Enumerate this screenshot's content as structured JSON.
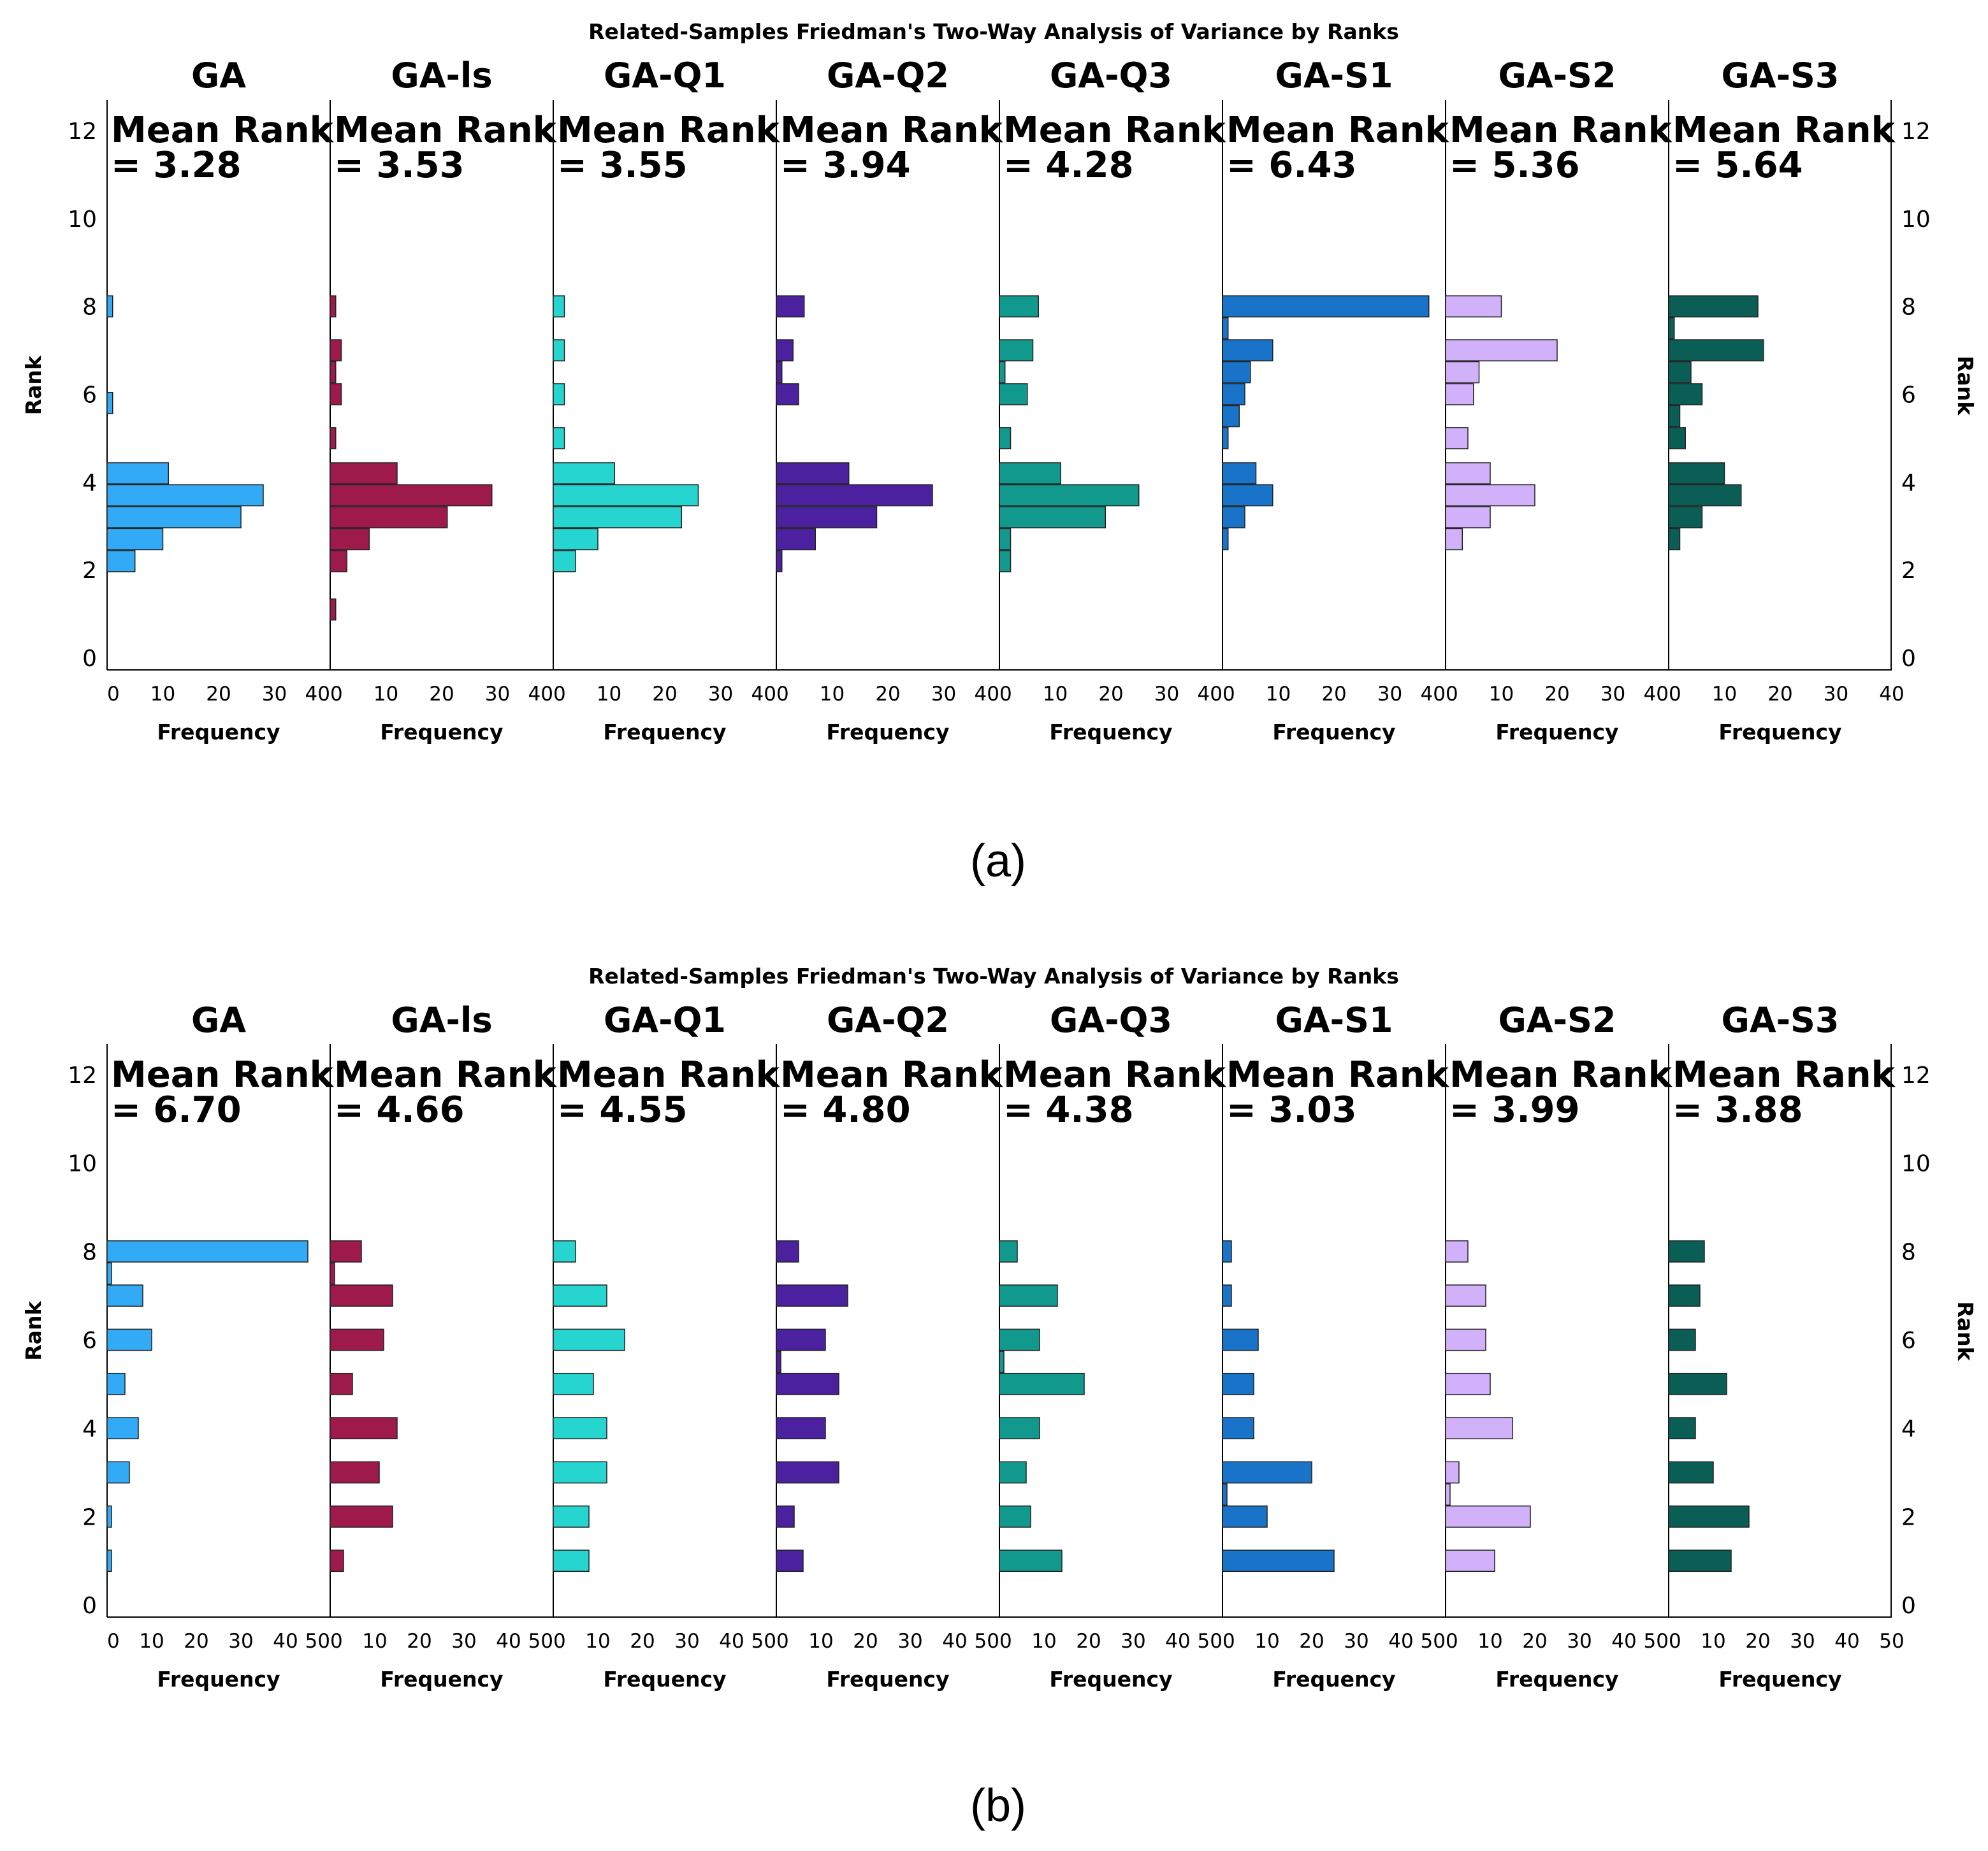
{
  "chart_data": [
    {
      "type": "bar",
      "orientation": "horizontal",
      "title": "Related-Samples Friedman's Two-Way Analysis of Variance by Ranks",
      "subfigure_label": "(a)",
      "ylabel": "Rank",
      "xlabel": "Frequency",
      "ylim": [
        0,
        12
      ],
      "yticks": [
        0,
        2,
        4,
        6,
        8,
        10,
        12
      ],
      "xlim": [
        0,
        40
      ],
      "xticks": [
        0,
        10,
        20,
        30,
        40
      ],
      "panels": [
        {
          "name": "GA",
          "mean_rank_label": "Mean Rank",
          "mean_rank_value": "= 3.28",
          "color": "#33aaf5",
          "bars": [
            {
              "rank": 2.2,
              "freq": 5
            },
            {
              "rank": 2.7,
              "freq": 10
            },
            {
              "rank": 3.2,
              "freq": 24
            },
            {
              "rank": 3.7,
              "freq": 28
            },
            {
              "rank": 4.2,
              "freq": 11
            },
            {
              "rank": 5.8,
              "freq": 1
            },
            {
              "rank": 8,
              "freq": 1
            }
          ]
        },
        {
          "name": "GA-ls",
          "mean_rank_label": "Mean Rank",
          "mean_rank_value": "= 3.53",
          "color": "#9e1a4a",
          "bars": [
            {
              "rank": 1.1,
              "freq": 1
            },
            {
              "rank": 2.2,
              "freq": 3
            },
            {
              "rank": 2.7,
              "freq": 7
            },
            {
              "rank": 3.2,
              "freq": 21
            },
            {
              "rank": 3.7,
              "freq": 29
            },
            {
              "rank": 4.2,
              "freq": 12
            },
            {
              "rank": 5,
              "freq": 1
            },
            {
              "rank": 6,
              "freq": 2
            },
            {
              "rank": 6.5,
              "freq": 1
            },
            {
              "rank": 7,
              "freq": 2
            },
            {
              "rank": 8,
              "freq": 1
            }
          ]
        },
        {
          "name": "GA-Q1",
          "mean_rank_label": "Mean Rank",
          "mean_rank_value": "= 3.55",
          "color": "#26d4d0",
          "bars": [
            {
              "rank": 2.2,
              "freq": 4
            },
            {
              "rank": 2.7,
              "freq": 8
            },
            {
              "rank": 3.2,
              "freq": 23
            },
            {
              "rank": 3.7,
              "freq": 26
            },
            {
              "rank": 4.2,
              "freq": 11
            },
            {
              "rank": 5,
              "freq": 2
            },
            {
              "rank": 6,
              "freq": 2
            },
            {
              "rank": 7,
              "freq": 2
            },
            {
              "rank": 8,
              "freq": 2
            }
          ]
        },
        {
          "name": "GA-Q2",
          "mean_rank_label": "Mean Rank",
          "mean_rank_value": "= 3.94",
          "color": "#4b21a0",
          "bars": [
            {
              "rank": 2.2,
              "freq": 1
            },
            {
              "rank": 2.7,
              "freq": 7
            },
            {
              "rank": 3.2,
              "freq": 18
            },
            {
              "rank": 3.7,
              "freq": 28
            },
            {
              "rank": 4.2,
              "freq": 13
            },
            {
              "rank": 6,
              "freq": 4
            },
            {
              "rank": 6.5,
              "freq": 1
            },
            {
              "rank": 7,
              "freq": 3
            },
            {
              "rank": 8,
              "freq": 5
            }
          ]
        },
        {
          "name": "GA-Q3",
          "mean_rank_label": "Mean Rank",
          "mean_rank_value": "= 4.28",
          "color": "#12998e",
          "bars": [
            {
              "rank": 2.2,
              "freq": 2
            },
            {
              "rank": 2.7,
              "freq": 2
            },
            {
              "rank": 3.2,
              "freq": 19
            },
            {
              "rank": 3.7,
              "freq": 25
            },
            {
              "rank": 4.2,
              "freq": 11
            },
            {
              "rank": 5,
              "freq": 2
            },
            {
              "rank": 6,
              "freq": 5
            },
            {
              "rank": 6.5,
              "freq": 1
            },
            {
              "rank": 7,
              "freq": 6
            },
            {
              "rank": 8,
              "freq": 7
            }
          ]
        },
        {
          "name": "GA-S1",
          "mean_rank_label": "Mean Rank",
          "mean_rank_value": "= 6.43",
          "color": "#1873c9",
          "bars": [
            {
              "rank": 2.7,
              "freq": 1
            },
            {
              "rank": 3.2,
              "freq": 4
            },
            {
              "rank": 3.7,
              "freq": 9
            },
            {
              "rank": 4.2,
              "freq": 6
            },
            {
              "rank": 5,
              "freq": 1
            },
            {
              "rank": 5.5,
              "freq": 3
            },
            {
              "rank": 6,
              "freq": 4
            },
            {
              "rank": 6.5,
              "freq": 5
            },
            {
              "rank": 7,
              "freq": 9
            },
            {
              "rank": 7.5,
              "freq": 1
            },
            {
              "rank": 8,
              "freq": 37
            }
          ]
        },
        {
          "name": "GA-S2",
          "mean_rank_label": "Mean Rank",
          "mean_rank_value": "= 5.36",
          "color": "#d1b1fa",
          "bars": [
            {
              "rank": 2.7,
              "freq": 3
            },
            {
              "rank": 3.2,
              "freq": 8
            },
            {
              "rank": 3.7,
              "freq": 16
            },
            {
              "rank": 4.2,
              "freq": 8
            },
            {
              "rank": 5,
              "freq": 4
            },
            {
              "rank": 6,
              "freq": 5
            },
            {
              "rank": 6.5,
              "freq": 6
            },
            {
              "rank": 7,
              "freq": 20
            },
            {
              "rank": 8,
              "freq": 10
            }
          ]
        },
        {
          "name": "GA-S3",
          "mean_rank_label": "Mean Rank",
          "mean_rank_value": "= 5.64",
          "color": "#0b5e55",
          "bars": [
            {
              "rank": 2.7,
              "freq": 2
            },
            {
              "rank": 3.2,
              "freq": 6
            },
            {
              "rank": 3.7,
              "freq": 13
            },
            {
              "rank": 4.2,
              "freq": 10
            },
            {
              "rank": 5,
              "freq": 3
            },
            {
              "rank": 5.5,
              "freq": 2
            },
            {
              "rank": 6,
              "freq": 6
            },
            {
              "rank": 6.5,
              "freq": 4
            },
            {
              "rank": 7,
              "freq": 17
            },
            {
              "rank": 7.5,
              "freq": 1
            },
            {
              "rank": 8,
              "freq": 16
            }
          ]
        }
      ]
    },
    {
      "type": "bar",
      "orientation": "horizontal",
      "title": "Related-Samples Friedman's Two-Way Analysis of Variance by Ranks",
      "subfigure_label": "(b)",
      "ylabel": "Rank",
      "xlabel": "Frequency",
      "ylim": [
        0,
        12
      ],
      "yticks": [
        0,
        2,
        4,
        6,
        8,
        10,
        12
      ],
      "xlim": [
        0,
        50
      ],
      "xticks": [
        0,
        10,
        20,
        30,
        40,
        50
      ],
      "panels": [
        {
          "name": "GA",
          "mean_rank_label": "Mean Rank",
          "mean_rank_value": "= 6.70",
          "color": "#33aaf5",
          "bars": [
            {
              "rank": 1,
              "freq": 1
            },
            {
              "rank": 2,
              "freq": 1
            },
            {
              "rank": 3,
              "freq": 5
            },
            {
              "rank": 4,
              "freq": 7
            },
            {
              "rank": 5,
              "freq": 4
            },
            {
              "rank": 6,
              "freq": 10
            },
            {
              "rank": 7,
              "freq": 8
            },
            {
              "rank": 7.5,
              "freq": 1
            },
            {
              "rank": 8,
              "freq": 45
            }
          ]
        },
        {
          "name": "GA-ls",
          "mean_rank_label": "Mean Rank",
          "mean_rank_value": "= 4.66",
          "color": "#9e1a4a",
          "bars": [
            {
              "rank": 1,
              "freq": 3
            },
            {
              "rank": 2,
              "freq": 14
            },
            {
              "rank": 3,
              "freq": 11
            },
            {
              "rank": 4,
              "freq": 15
            },
            {
              "rank": 5,
              "freq": 5
            },
            {
              "rank": 6,
              "freq": 12
            },
            {
              "rank": 7,
              "freq": 14
            },
            {
              "rank": 7.5,
              "freq": 1
            },
            {
              "rank": 8,
              "freq": 7
            }
          ]
        },
        {
          "name": "GA-Q1",
          "mean_rank_label": "Mean Rank",
          "mean_rank_value": "= 4.55",
          "color": "#26d4d0",
          "bars": [
            {
              "rank": 1,
              "freq": 8
            },
            {
              "rank": 2,
              "freq": 8
            },
            {
              "rank": 3,
              "freq": 12
            },
            {
              "rank": 4,
              "freq": 12
            },
            {
              "rank": 5,
              "freq": 9
            },
            {
              "rank": 6,
              "freq": 16
            },
            {
              "rank": 7,
              "freq": 12
            },
            {
              "rank": 8,
              "freq": 5
            }
          ]
        },
        {
          "name": "GA-Q2",
          "mean_rank_label": "Mean Rank",
          "mean_rank_value": "= 4.80",
          "color": "#4b21a0",
          "bars": [
            {
              "rank": 1,
              "freq": 6
            },
            {
              "rank": 2,
              "freq": 4
            },
            {
              "rank": 3,
              "freq": 14
            },
            {
              "rank": 4,
              "freq": 11
            },
            {
              "rank": 5,
              "freq": 14
            },
            {
              "rank": 5.5,
              "freq": 1
            },
            {
              "rank": 6,
              "freq": 11
            },
            {
              "rank": 7,
              "freq": 16
            },
            {
              "rank": 8,
              "freq": 5
            }
          ]
        },
        {
          "name": "GA-Q3",
          "mean_rank_label": "Mean Rank",
          "mean_rank_value": "= 4.38",
          "color": "#12998e",
          "bars": [
            {
              "rank": 1,
              "freq": 14
            },
            {
              "rank": 2,
              "freq": 7
            },
            {
              "rank": 3,
              "freq": 6
            },
            {
              "rank": 4,
              "freq": 9
            },
            {
              "rank": 5,
              "freq": 19
            },
            {
              "rank": 5.5,
              "freq": 1
            },
            {
              "rank": 6,
              "freq": 9
            },
            {
              "rank": 7,
              "freq": 13
            },
            {
              "rank": 8,
              "freq": 4
            }
          ]
        },
        {
          "name": "GA-S1",
          "mean_rank_label": "Mean Rank",
          "mean_rank_value": "= 3.03",
          "color": "#1873c9",
          "bars": [
            {
              "rank": 1,
              "freq": 25
            },
            {
              "rank": 2,
              "freq": 10
            },
            {
              "rank": 2.5,
              "freq": 1
            },
            {
              "rank": 3,
              "freq": 20
            },
            {
              "rank": 4,
              "freq": 7
            },
            {
              "rank": 5,
              "freq": 7
            },
            {
              "rank": 6,
              "freq": 8
            },
            {
              "rank": 7,
              "freq": 2
            },
            {
              "rank": 8,
              "freq": 2
            }
          ]
        },
        {
          "name": "GA-S2",
          "mean_rank_label": "Mean Rank",
          "mean_rank_value": "= 3.99",
          "color": "#d1b1fa",
          "bars": [
            {
              "rank": 1,
              "freq": 11
            },
            {
              "rank": 2,
              "freq": 19
            },
            {
              "rank": 2.5,
              "freq": 1
            },
            {
              "rank": 3,
              "freq": 3
            },
            {
              "rank": 4,
              "freq": 15
            },
            {
              "rank": 5,
              "freq": 10
            },
            {
              "rank": 6,
              "freq": 9
            },
            {
              "rank": 7,
              "freq": 9
            },
            {
              "rank": 8,
              "freq": 5
            }
          ]
        },
        {
          "name": "GA-S3",
          "mean_rank_label": "Mean Rank",
          "mean_rank_value": "= 3.88",
          "color": "#0b5e55",
          "bars": [
            {
              "rank": 1,
              "freq": 14
            },
            {
              "rank": 2,
              "freq": 18
            },
            {
              "rank": 3,
              "freq": 10
            },
            {
              "rank": 4,
              "freq": 6
            },
            {
              "rank": 5,
              "freq": 13
            },
            {
              "rank": 6,
              "freq": 6
            },
            {
              "rank": 7,
              "freq": 7
            },
            {
              "rank": 8,
              "freq": 8
            }
          ]
        }
      ]
    }
  ]
}
